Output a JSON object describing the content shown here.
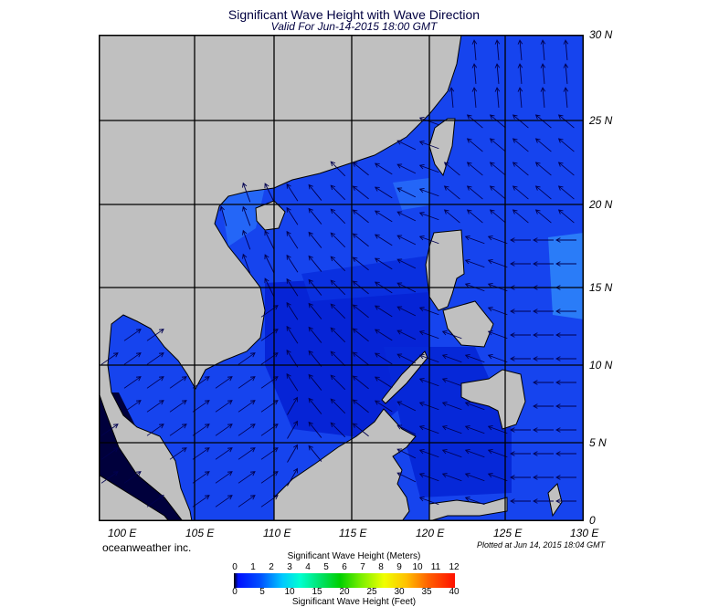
{
  "title": "Significant Wave Height with Wave Direction",
  "subtitle": "Valid For Jun-14-2015 18:00 GMT",
  "credit": "oceanweather inc.",
  "plotted": "Plotted at Jun 14, 2015 18:04 GMT",
  "map": {
    "lon_range": [
      100,
      130
    ],
    "lat_range": [
      0,
      30
    ],
    "lon_labels": [
      "100 E",
      "105 E",
      "110 E",
      "115 E",
      "120 E",
      "125 E",
      "130 E"
    ],
    "lat_labels": [
      "30 N",
      "25 N",
      "20 N",
      "15 N",
      "10 N",
      "5 N",
      "0"
    ],
    "grid": true,
    "colors": {
      "land": "#c0c0c0",
      "sea": "#1644ee",
      "sea_light": "#2466f7",
      "sea_dark": "#0624d6",
      "deep": "#00003c",
      "arrow": "#000050"
    }
  },
  "colorbar": {
    "title_meters": "Significant Wave Height (Meters)",
    "title_feet": "Significant Wave Height (Feet)",
    "meters": [
      "0",
      "1",
      "2",
      "3",
      "4",
      "5",
      "6",
      "7",
      "8",
      "9",
      "10",
      "11",
      "12"
    ],
    "feet": [
      "0",
      "5",
      "10",
      "15",
      "20",
      "25",
      "30",
      "35",
      "40"
    ]
  }
}
